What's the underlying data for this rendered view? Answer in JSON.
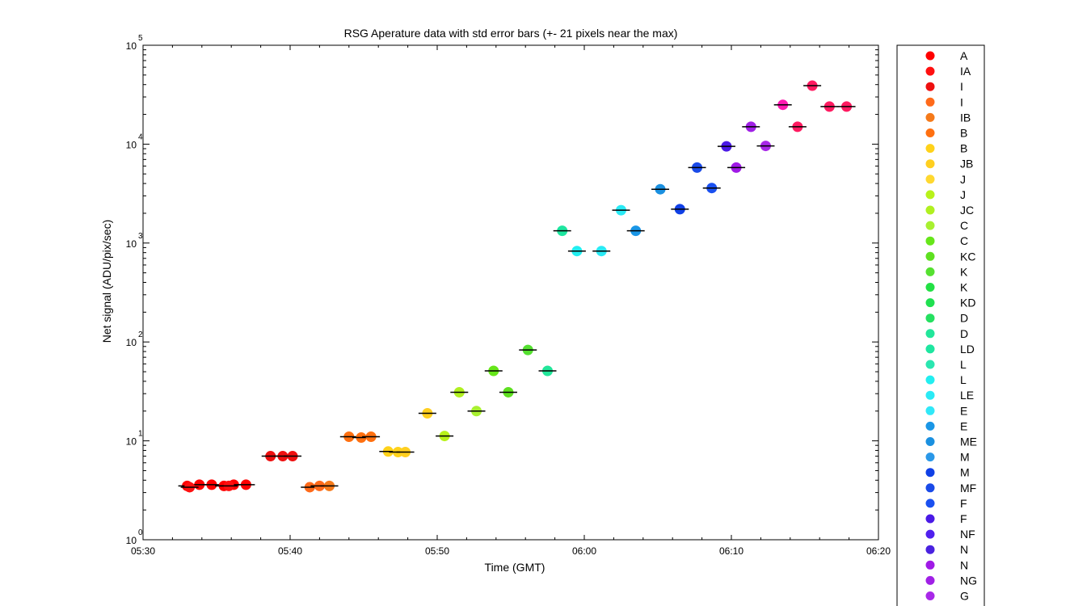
{
  "chart_data": {
    "type": "scatter",
    "title": "RSG Aperature data with std error bars (+- 21 pixels near the max)",
    "xlabel": "Time (GMT)",
    "ylabel": "Net signal (ADU/pix/sec)",
    "xscale": "time",
    "yscale": "log",
    "xlim": [
      "05:30",
      "06:20"
    ],
    "ylim": [
      1,
      100000
    ],
    "xticks": [
      "05:30",
      "05:40",
      "05:50",
      "06:00",
      "06:10",
      "06:20"
    ],
    "yticks": [
      {
        "value": 1,
        "base": "10",
        "exp": "0"
      },
      {
        "value": 10,
        "base": "10",
        "exp": "1"
      },
      {
        "value": 100,
        "base": "10",
        "exp": "2"
      },
      {
        "value": 1000,
        "base": "10",
        "exp": "3"
      },
      {
        "value": 10000,
        "base": "10",
        "exp": "4"
      },
      {
        "value": 100000,
        "base": "10",
        "exp": "5"
      }
    ],
    "grid": false,
    "legend_position": "outside-right",
    "series": [
      {
        "name": "A",
        "color": "#ff0000",
        "points": [
          [
            "05:33:00",
            3.5
          ],
          [
            "05:33:50",
            3.6
          ],
          [
            "05:34:40",
            3.6
          ],
          [
            "05:35:30",
            3.5
          ],
          [
            "05:36:10",
            3.6
          ],
          [
            "05:37:00",
            3.6
          ]
        ]
      },
      {
        "name": "IA",
        "color": "#ff1010",
        "points": [
          [
            "05:33:10",
            3.4
          ],
          [
            "05:35:50",
            3.5
          ]
        ]
      },
      {
        "name": "I",
        "color": "#ee1010",
        "points": [
          [
            "05:38:40",
            7.0
          ],
          [
            "05:39:30",
            7.0
          ],
          [
            "05:40:10",
            7.0
          ]
        ]
      },
      {
        "name": "I",
        "color": "#ff6a1a",
        "points": [
          [
            "05:41:20",
            3.4
          ],
          [
            "05:42:00",
            3.5
          ]
        ]
      },
      {
        "name": "IB",
        "color": "#f57a1a",
        "points": [
          [
            "05:42:40",
            3.5
          ]
        ]
      },
      {
        "name": "B",
        "color": "#ff7010",
        "points": [
          [
            "05:44:00",
            11
          ],
          [
            "05:44:50",
            10.8
          ],
          [
            "05:45:30",
            11
          ]
        ]
      },
      {
        "name": "B",
        "color": "#ffd21a",
        "points": [
          [
            "05:46:40",
            7.8
          ],
          [
            "05:47:20",
            7.7
          ]
        ]
      },
      {
        "name": "JB",
        "color": "#ffcf20",
        "points": [
          [
            "05:47:50",
            7.7
          ],
          [
            "05:49:20",
            19
          ]
        ]
      },
      {
        "name": "J",
        "color": "#ffd830",
        "points": []
      },
      {
        "name": "J",
        "color": "#b8f21a",
        "points": [
          [
            "05:50:30",
            11.2
          ]
        ]
      },
      {
        "name": "JC",
        "color": "#b0f020",
        "points": [
          [
            "05:51:30",
            31
          ]
        ]
      },
      {
        "name": "C",
        "color": "#a8f030",
        "points": [
          [
            "05:52:40",
            20
          ]
        ]
      },
      {
        "name": "C",
        "color": "#66e61a",
        "points": [
          [
            "05:53:50",
            51
          ]
        ]
      },
      {
        "name": "KC",
        "color": "#5ee020",
        "points": [
          [
            "05:54:50",
            31
          ]
        ]
      },
      {
        "name": "K",
        "color": "#55e030",
        "points": [
          [
            "05:56:10",
            83
          ]
        ]
      },
      {
        "name": "K",
        "color": "#22e044",
        "points": []
      },
      {
        "name": "KD",
        "color": "#20e050",
        "points": []
      },
      {
        "name": "D",
        "color": "#25e060",
        "points": []
      },
      {
        "name": "D",
        "color": "#22e69a",
        "points": [
          [
            "05:57:30",
            51
          ]
        ]
      },
      {
        "name": "LD",
        "color": "#1ee6a0",
        "points": [
          [
            "05:58:30",
            1330
          ]
        ]
      },
      {
        "name": "L",
        "color": "#2ae6b0",
        "points": []
      },
      {
        "name": "L",
        "color": "#22eef0",
        "points": [
          [
            "05:59:30",
            830
          ]
        ]
      },
      {
        "name": "LE",
        "color": "#2aeaf5",
        "points": [
          [
            "06:01:10",
            830
          ],
          [
            "06:02:30",
            2150
          ]
        ]
      },
      {
        "name": "E",
        "color": "#30e8f8",
        "points": []
      },
      {
        "name": "E",
        "color": "#1a96e6",
        "points": [
          [
            "06:03:30",
            1330
          ]
        ]
      },
      {
        "name": "ME",
        "color": "#1a90e0",
        "points": [
          [
            "06:05:10",
            3500
          ]
        ]
      },
      {
        "name": "M",
        "color": "#2a98e8",
        "points": []
      },
      {
        "name": "M",
        "color": "#1040e6",
        "points": [
          [
            "06:06:30",
            2200
          ]
        ]
      },
      {
        "name": "MF",
        "color": "#1a4ae8",
        "points": [
          [
            "06:07:40",
            5800
          ]
        ]
      },
      {
        "name": "F",
        "color": "#1a50f0",
        "points": [
          [
            "06:08:40",
            3600
          ]
        ]
      },
      {
        "name": "F",
        "color": "#4a1ae6",
        "points": [
          [
            "06:09:40",
            9500
          ]
        ]
      },
      {
        "name": "NF",
        "color": "#5020ee",
        "points": []
      },
      {
        "name": "N",
        "color": "#4a22e0",
        "points": []
      },
      {
        "name": "N",
        "color": "#a01ae6",
        "points": [
          [
            "06:10:20",
            5800
          ]
        ]
      },
      {
        "name": "NG",
        "color": "#a020e6",
        "points": [
          [
            "06:11:20",
            15000
          ]
        ]
      },
      {
        "name": "G",
        "color": "#a828e8",
        "points": [
          [
            "06:12:20",
            9600
          ]
        ]
      }
    ],
    "extra_points": [
      {
        "color": "#ff1ab0",
        "points": [
          [
            "06:13:30",
            25000
          ]
        ]
      },
      {
        "color": "#ff1a60",
        "points": [
          [
            "06:14:30",
            15000
          ],
          [
            "06:15:30",
            39000
          ],
          [
            "06:16:40",
            24000
          ],
          [
            "06:17:50",
            24000
          ]
        ]
      }
    ]
  }
}
